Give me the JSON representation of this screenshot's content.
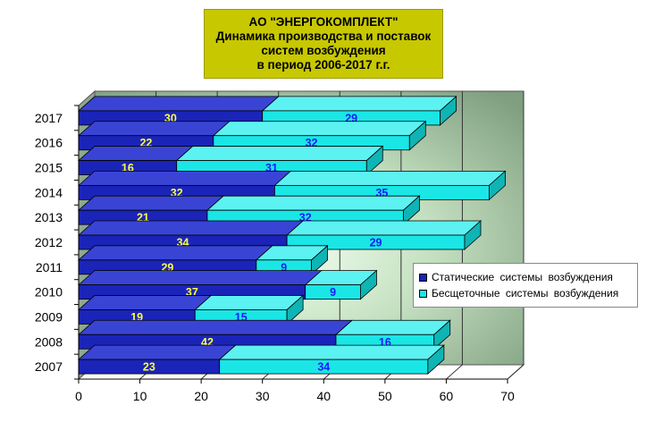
{
  "title_lines": [
    "АО \"ЭНЕРГОКОМПЛЕКТ\"",
    "Динамика производства и поставок",
    "систем возбуждения",
    "в период 2006-2017 г.г."
  ],
  "colors": {
    "static": "#1a24b8",
    "static_top": "#3a44d4",
    "static_side": "#0f178c",
    "brushless": "#1ae6e6",
    "brushless_top": "#5cf2f2",
    "brushless_side": "#0fb4b4",
    "title_bg": "#c8c800",
    "wall": "#98b498",
    "wall_highlight": "#f2fff0",
    "static_label": "#ffff40",
    "brushless_label": "#1a1aff"
  },
  "chart_data": {
    "type": "bar",
    "orientation": "horizontal",
    "stacked": true,
    "three_d": true,
    "categories": [
      "2007",
      "2008",
      "2009",
      "2010",
      "2011",
      "2012",
      "2013",
      "2014",
      "2015",
      "2016",
      "2017"
    ],
    "series": [
      {
        "name": "Статические системы возбуждения",
        "values": [
          23,
          42,
          19,
          37,
          29,
          34,
          21,
          32,
          16,
          22,
          30
        ]
      },
      {
        "name": "Бесщеточные системы возбуждения",
        "values": [
          34,
          16,
          15,
          9,
          9,
          29,
          32,
          35,
          31,
          32,
          29
        ]
      }
    ],
    "x_ticks": [
      "0",
      "10",
      "20",
      "30",
      "40",
      "50",
      "60",
      "70"
    ],
    "xlim": [
      0,
      70
    ],
    "grid": true,
    "legend_position": "right"
  }
}
